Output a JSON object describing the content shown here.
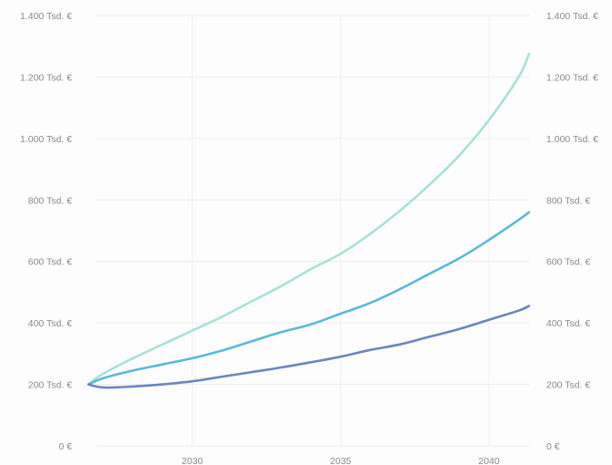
{
  "chart_data": {
    "type": "line",
    "title": "",
    "xlabel": "",
    "ylabel": "",
    "x_ticks": [
      2030,
      2035,
      2040
    ],
    "x_tick_labels": [
      "2030",
      "2035",
      "2040"
    ],
    "xlim": [
      2026.5,
      2041.35
    ],
    "y_ticks": [
      0,
      200,
      400,
      600,
      800,
      1000,
      1200,
      1400
    ],
    "y_tick_labels": [
      "0 €",
      "200 Tsd. €",
      "400 Tsd. €",
      "600 Tsd. €",
      "800 Tsd. €",
      "1.000 Tsd. €",
      "1.200 Tsd. €",
      "1.400 Tsd. €"
    ],
    "ylim": [
      0,
      1400
    ],
    "unit": "Tsd. €",
    "grid": true,
    "series": [
      {
        "color": "#a6e2d9",
        "x": [
          2026.5,
          2027,
          2028,
          2029,
          2030,
          2031,
          2032,
          2033,
          2034,
          2035,
          2036,
          2037,
          2038,
          2039,
          2040,
          2041,
          2041.35
        ],
        "values": [
          200,
          235,
          285,
          330,
          375,
          420,
          470,
          520,
          575,
          625,
          690,
          765,
          850,
          945,
          1060,
          1200,
          1275
        ]
      },
      {
        "color": "#5ab9d8",
        "x": [
          2026.5,
          2027,
          2028,
          2029,
          2030,
          2031,
          2032,
          2033,
          2034,
          2035,
          2036,
          2037,
          2038,
          2039,
          2040,
          2041,
          2041.35
        ],
        "values": [
          200,
          220,
          245,
          265,
          285,
          310,
          340,
          370,
          395,
          430,
          465,
          510,
          560,
          610,
          670,
          735,
          760
        ]
      },
      {
        "color": "#6c86bf",
        "x": [
          2026.5,
          2027,
          2028,
          2029,
          2030,
          2031,
          2032,
          2033,
          2034,
          2035,
          2036,
          2037,
          2038,
          2039,
          2040,
          2041,
          2041.35
        ],
        "values": [
          200,
          190,
          193,
          200,
          210,
          225,
          240,
          255,
          272,
          290,
          312,
          330,
          355,
          380,
          410,
          440,
          455
        ]
      }
    ]
  }
}
